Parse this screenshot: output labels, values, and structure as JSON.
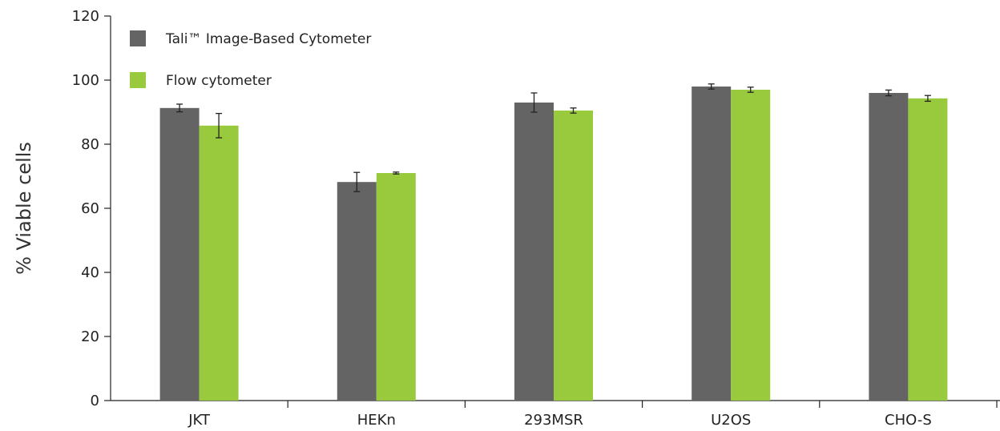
{
  "chart_data": {
    "type": "bar",
    "title": "",
    "xlabel": "",
    "ylabel": "% Viable cells",
    "ylim": [
      0,
      120
    ],
    "yticks": [
      0,
      20,
      40,
      60,
      80,
      100,
      120
    ],
    "categories": [
      "JKT",
      "HEKn",
      "293MSR",
      "U2OS",
      "CHO-S"
    ],
    "grid": false,
    "legend_position": "top-left",
    "series": [
      {
        "name": "Tali™ Image-Based Cytometer",
        "color": "#646464",
        "values": [
          91.3,
          68.2,
          93.0,
          98.0,
          96.0
        ],
        "errors": [
          1.2,
          3.0,
          3.0,
          0.8,
          0.9
        ]
      },
      {
        "name": "Flow cytometer",
        "color": "#99c93c",
        "values": [
          85.8,
          71.0,
          90.5,
          97.0,
          94.3
        ],
        "errors": [
          3.8,
          0.3,
          0.8,
          0.8,
          0.9
        ]
      }
    ]
  }
}
